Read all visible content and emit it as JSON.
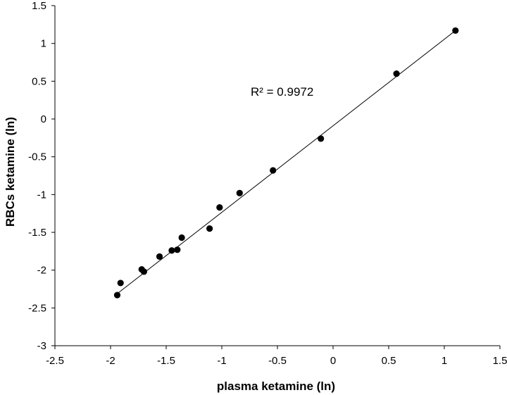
{
  "chart_data": {
    "type": "scatter",
    "title": "",
    "xlabel": "plasma ketamine (ln)",
    "ylabel": "RBCs ketamine (ln)",
    "xlim": [
      -2.5,
      1.5
    ],
    "ylim": [
      -3,
      1.5
    ],
    "xticks": [
      -2.5,
      -2,
      -1.5,
      -1,
      -0.5,
      0,
      0.5,
      1,
      1.5
    ],
    "yticks": [
      -3,
      -2.5,
      -2,
      -1.5,
      -1,
      -0.5,
      0,
      0.5,
      1,
      1.5
    ],
    "grid": false,
    "legend": "none",
    "annotation": "R² = 0.9972",
    "trendline": {
      "x": [
        -1.93,
        1.1
      ],
      "y": [
        -2.3,
        1.17
      ]
    },
    "points": [
      {
        "x": -1.94,
        "y": -2.33
      },
      {
        "x": -1.91,
        "y": -2.17
      },
      {
        "x": -1.72,
        "y": -1.99
      },
      {
        "x": -1.7,
        "y": -2.02
      },
      {
        "x": -1.56,
        "y": -1.82
      },
      {
        "x": -1.45,
        "y": -1.74
      },
      {
        "x": -1.4,
        "y": -1.73
      },
      {
        "x": -1.36,
        "y": -1.57
      },
      {
        "x": -1.11,
        "y": -1.45
      },
      {
        "x": -1.02,
        "y": -1.17
      },
      {
        "x": -0.84,
        "y": -0.98
      },
      {
        "x": -0.54,
        "y": -0.68
      },
      {
        "x": -0.11,
        "y": -0.26
      },
      {
        "x": 0.57,
        "y": 0.6
      },
      {
        "x": 1.1,
        "y": 1.17
      }
    ],
    "colors": {
      "marker": "#000000",
      "line": "#000000",
      "axis": "#000000"
    }
  }
}
